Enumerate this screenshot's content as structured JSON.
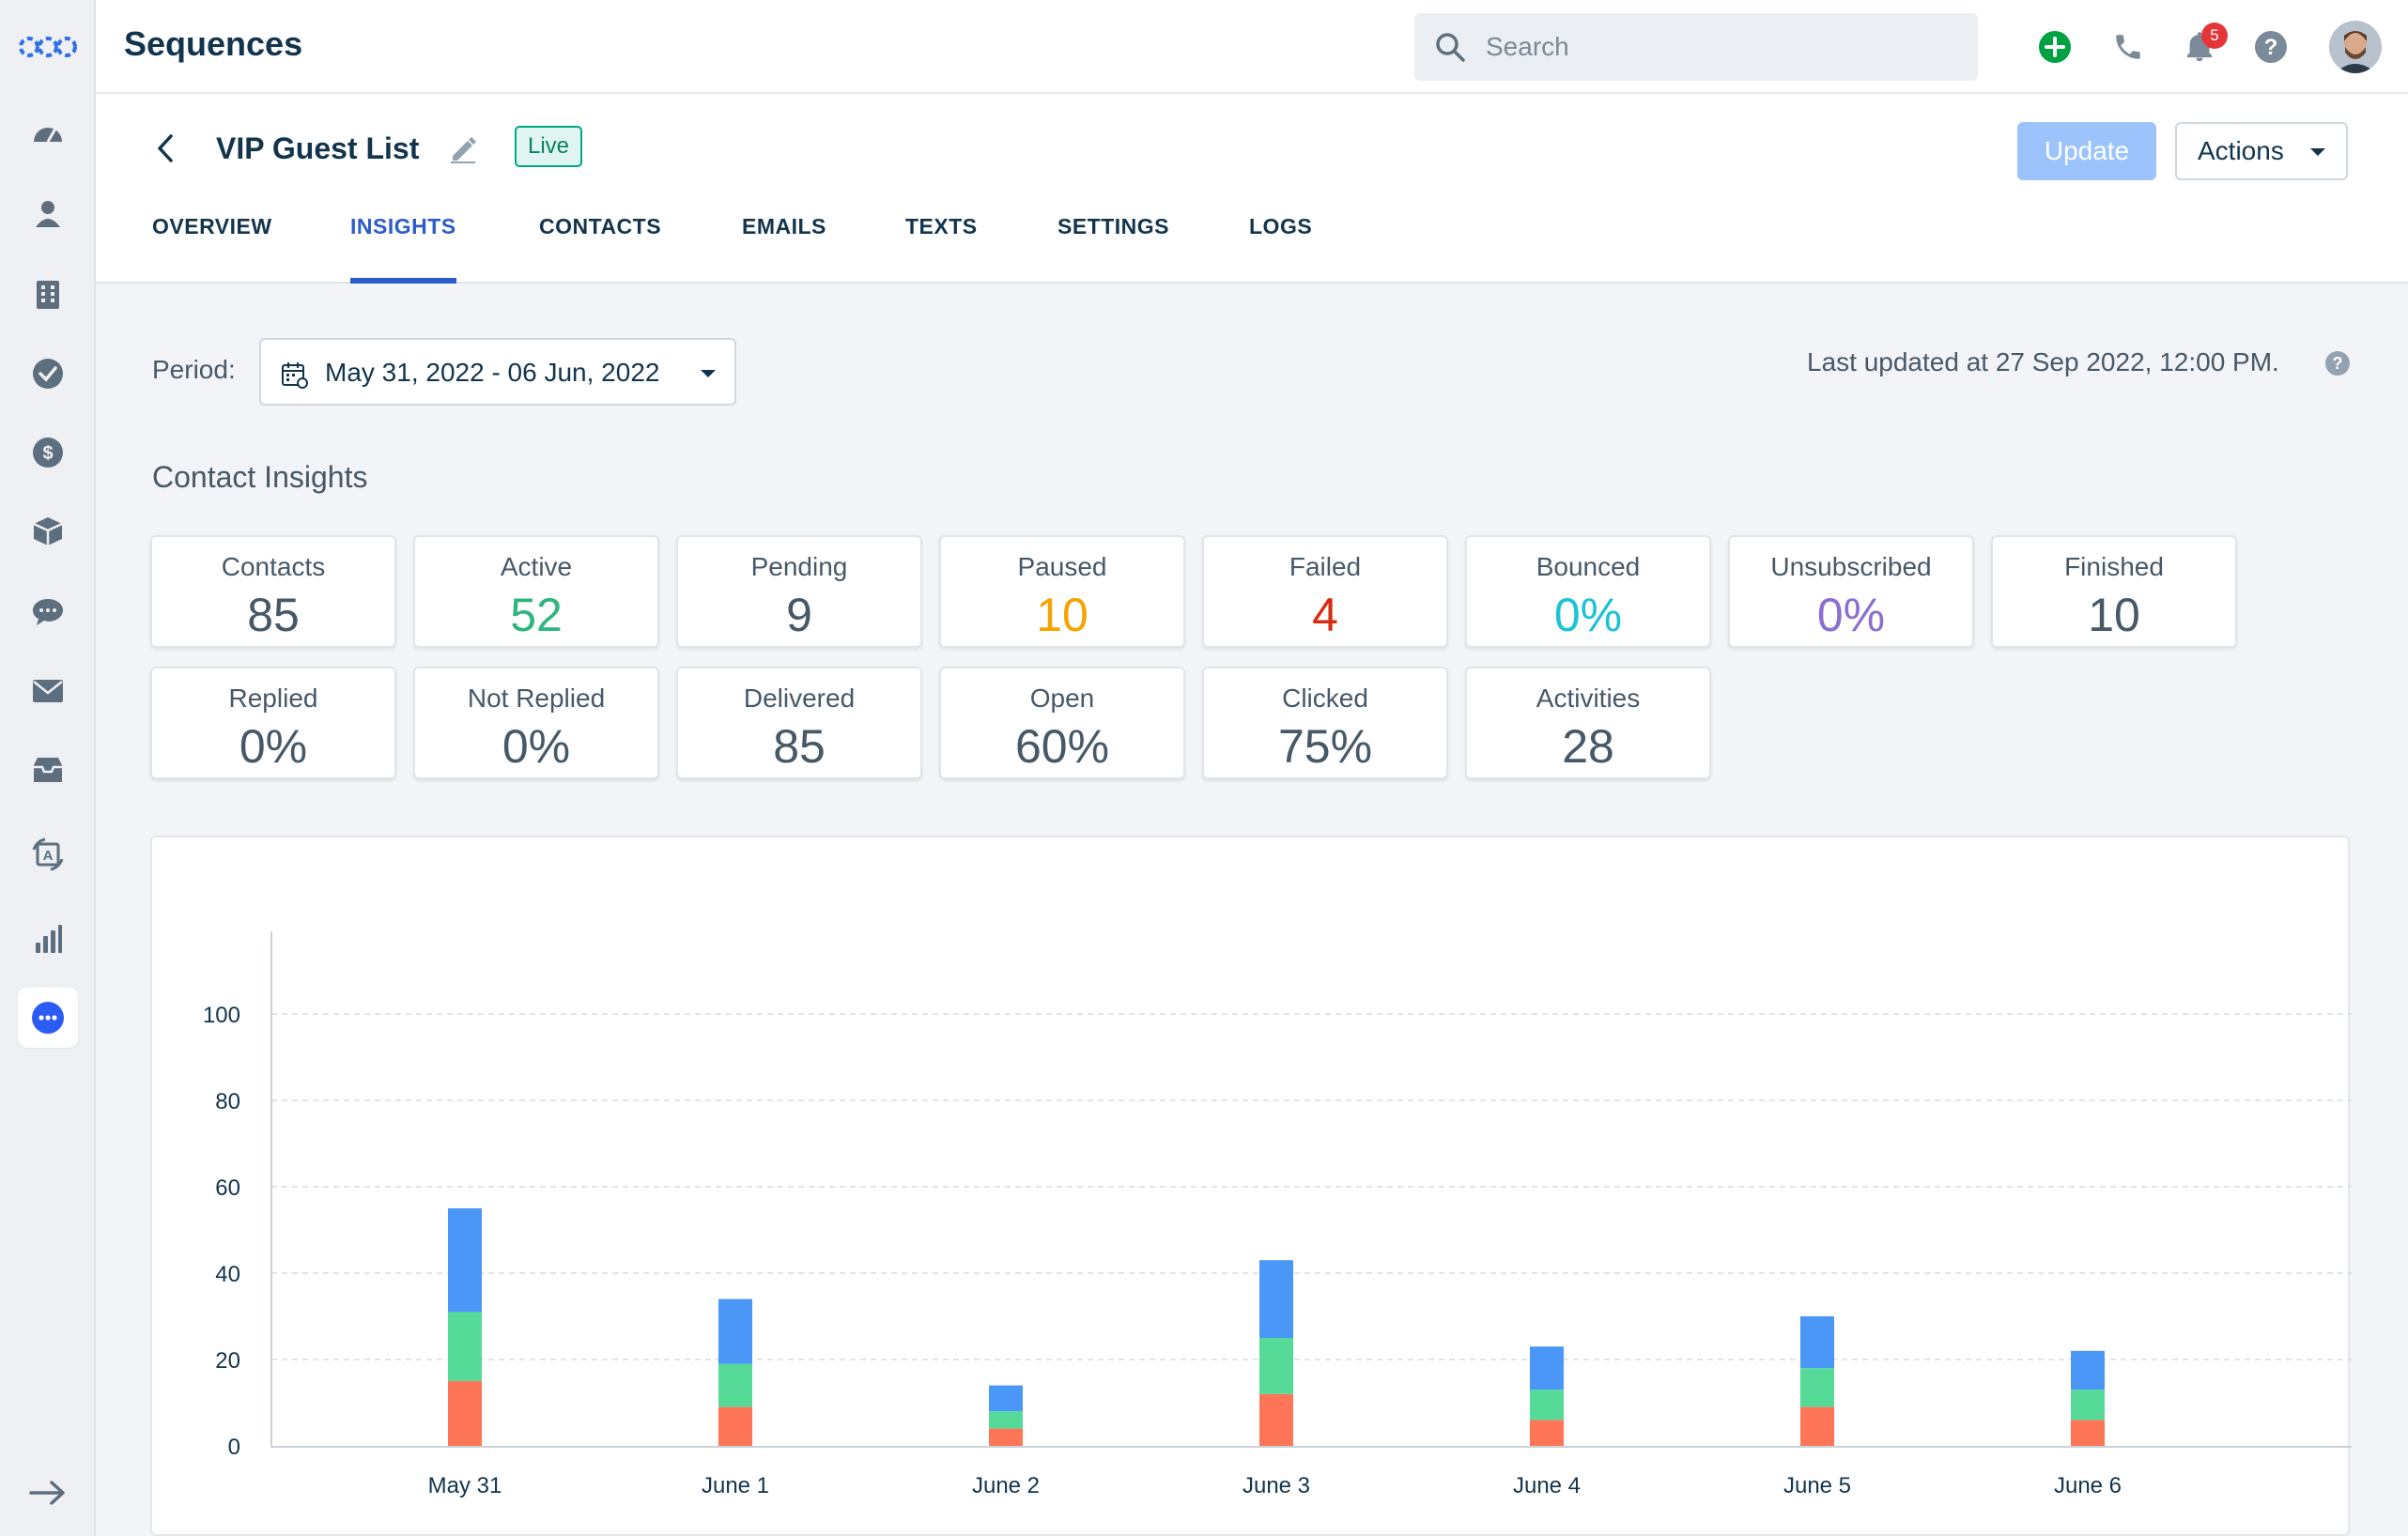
{
  "app": {
    "title": "Sequences"
  },
  "search": {
    "placeholder": "Search"
  },
  "notifications": {
    "count": "5"
  },
  "sidebar": {
    "items": [
      {
        "icon": "dashboard-icon"
      },
      {
        "icon": "contacts-icon"
      },
      {
        "icon": "accounts-icon"
      },
      {
        "icon": "tasks-icon"
      },
      {
        "icon": "deals-icon"
      },
      {
        "icon": "products-icon"
      },
      {
        "icon": "chat-icon"
      },
      {
        "icon": "email-icon"
      },
      {
        "icon": "inbox-icon"
      },
      {
        "icon": "sequences-icon"
      },
      {
        "icon": "reports-icon"
      },
      {
        "icon": "more-icon"
      }
    ],
    "expand_icon": "arrow-right-icon"
  },
  "sequence": {
    "name": "VIP Guest List",
    "status": "Live"
  },
  "header": {
    "update_label": "Update",
    "actions_label": "Actions"
  },
  "tabs": [
    {
      "label": "OVERVIEW"
    },
    {
      "label": "INSIGHTS",
      "active": true
    },
    {
      "label": "CONTACTS"
    },
    {
      "label": "EMAILS"
    },
    {
      "label": "TEXTS"
    },
    {
      "label": "SETTINGS"
    },
    {
      "label": "LOGS"
    }
  ],
  "period": {
    "label": "Period:",
    "value": "May 31, 2022 - 06 Jun, 2022"
  },
  "last_updated": "Last updated at 27 Sep 2022, 12:00 PM.",
  "insights": {
    "title": "Contact Insights",
    "cards": [
      {
        "label": "Contacts",
        "value": "85",
        "color": "#475867"
      },
      {
        "label": "Active",
        "value": "52",
        "color": "#2fb57f"
      },
      {
        "label": "Pending",
        "value": "9",
        "color": "#475867"
      },
      {
        "label": "Paused",
        "value": "10",
        "color": "#f5a300"
      },
      {
        "label": "Failed",
        "value": "4",
        "color": "#d72d0f"
      },
      {
        "label": "Bounced",
        "value": "0%",
        "color": "#1cc2d8"
      },
      {
        "label": "Unsubscribed",
        "value": "0%",
        "color": "#8a6fd1"
      },
      {
        "label": "Finished",
        "value": "10",
        "color": "#475867"
      },
      {
        "label": "Replied",
        "value": "0%",
        "color": "#475867"
      },
      {
        "label": "Not Replied",
        "value": "0%",
        "color": "#475867"
      },
      {
        "label": "Delivered",
        "value": "85",
        "color": "#475867"
      },
      {
        "label": "Open",
        "value": "60%",
        "color": "#475867"
      },
      {
        "label": "Clicked",
        "value": "75%",
        "color": "#475867"
      },
      {
        "label": "Activities",
        "value": "28",
        "color": "#475867"
      }
    ]
  },
  "chart_data": {
    "type": "bar",
    "stacked": true,
    "categories": [
      "May 31",
      "June 1",
      "June 2",
      "June 3",
      "June 4",
      "June 5",
      "June 6"
    ],
    "series": [
      {
        "color": "#fe7557",
        "values": [
          15,
          9,
          4,
          12,
          6,
          9,
          6
        ]
      },
      {
        "color": "#55db97",
        "values": [
          16,
          10,
          4,
          13,
          7,
          9,
          7
        ]
      },
      {
        "color": "#4a97f7",
        "values": [
          24,
          15,
          6,
          18,
          10,
          12,
          9
        ]
      }
    ],
    "ylim": [
      0,
      120
    ],
    "yticks": [
      0,
      20,
      40,
      60,
      80,
      100
    ],
    "grid": true,
    "xlabel": "",
    "ylabel": ""
  }
}
